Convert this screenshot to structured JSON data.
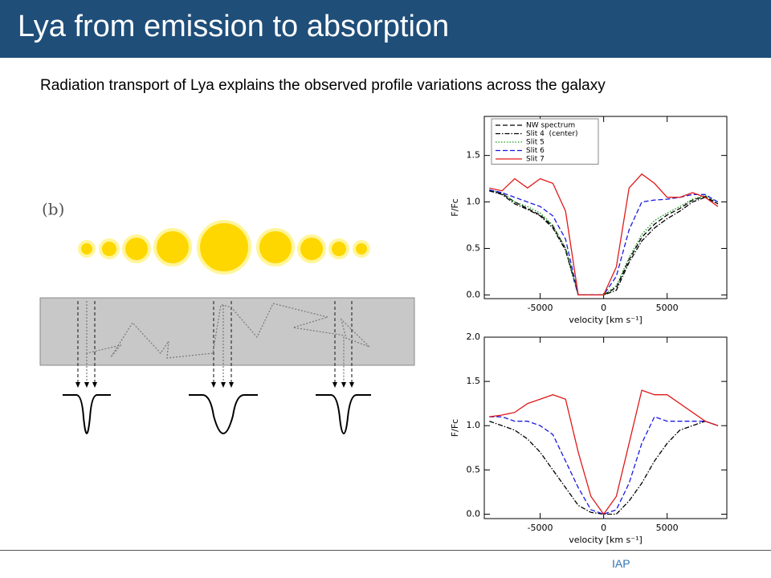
{
  "header": {
    "title": "Lya from emission to absorption"
  },
  "subtitle": "Radiation transport of Lya explains the observed profile variations across the galaxy",
  "diagram": {
    "label": "(b)"
  },
  "footer": "IAP",
  "chart_data": [
    {
      "type": "line",
      "x_label": "velocity [km s⁻¹]",
      "y_label": "F/Fc",
      "x": [
        -9000,
        -8000,
        -7000,
        -6000,
        -5000,
        -4000,
        -3000,
        -2000,
        -1000,
        0,
        1000,
        2000,
        3000,
        4000,
        5000,
        6000,
        7000,
        8000,
        9000
      ],
      "xlim": [
        -9400,
        9700
      ],
      "xticks": [
        -5000,
        0,
        5000
      ],
      "ylim": [
        -0.04,
        1.92
      ],
      "yticks": [
        {
          "value": 0,
          "label": "0.0"
        },
        {
          "value": 0.5,
          "label": "0.5"
        },
        {
          "value": 1,
          "label": "1.0"
        },
        {
          "value": 1.5,
          "label": "1.5"
        }
      ],
      "legend": "upper left",
      "series": [
        {
          "name": "NW spectrum",
          "color": "#000000",
          "linestyle": "dashed",
          "values": [
            1.12,
            1.09,
            1.0,
            0.93,
            0.86,
            0.74,
            0.5,
            0,
            0,
            0,
            0.08,
            0.38,
            0.62,
            0.76,
            0.86,
            0.93,
            1.02,
            1.06,
            0.98
          ]
        },
        {
          "name": "Slit 4  (center)",
          "color": "#000000",
          "linestyle": "dashdot",
          "values": [
            1.12,
            1.08,
            0.98,
            0.92,
            0.85,
            0.72,
            0.48,
            0,
            0,
            0,
            0.05,
            0.35,
            0.58,
            0.72,
            0.82,
            0.9,
            1.0,
            1.05,
            0.98
          ]
        },
        {
          "name": "Slit 5",
          "color": "#1a9a1a",
          "linestyle": "dotted",
          "values": [
            1.13,
            1.1,
            1.0,
            0.95,
            0.88,
            0.75,
            0.5,
            0,
            0,
            0,
            0.1,
            0.4,
            0.65,
            0.8,
            0.88,
            0.95,
            1.03,
            1.07,
            1.0
          ]
        },
        {
          "name": "Slit 6",
          "color": "#1a1ae0",
          "linestyle": "dashed",
          "values": [
            1.13,
            1.1,
            1.05,
            1.0,
            0.95,
            0.85,
            0.6,
            0,
            0,
            0,
            0.2,
            0.7,
            1.0,
            1.02,
            1.03,
            1.05,
            1.08,
            1.08,
            1.0
          ]
        },
        {
          "name": "Slit 7",
          "color": "#e01a1a",
          "linestyle": "solid",
          "values": [
            1.15,
            1.12,
            1.25,
            1.15,
            1.25,
            1.2,
            0.9,
            0,
            0,
            0,
            0.3,
            1.15,
            1.3,
            1.2,
            1.05,
            1.05,
            1.1,
            1.05,
            0.95
          ]
        }
      ]
    },
    {
      "type": "line",
      "x_label": "velocity [km s⁻¹]",
      "y_label": "F/Fc",
      "x": [
        -9000,
        -8000,
        -7000,
        -6000,
        -5000,
        -4000,
        -3000,
        -2000,
        -1000,
        0,
        1000,
        2000,
        3000,
        4000,
        5000,
        6000,
        7000,
        8000,
        9000
      ],
      "xlim": [
        -9400,
        9700
      ],
      "xticks": [
        -5000,
        0,
        5000
      ],
      "ylim": [
        -0.05,
        2.0
      ],
      "yticks": [
        {
          "value": 0,
          "label": "0.0"
        },
        {
          "value": 0.5,
          "label": "0.5"
        },
        {
          "value": 1,
          "label": "1.0"
        },
        {
          "value": 1.5,
          "label": "1.5"
        },
        {
          "value": 2,
          "label": "2.0"
        }
      ],
      "series": [
        {
          "color": "#000000",
          "linestyle": "dashdot",
          "values": [
            1.05,
            1.0,
            0.95,
            0.85,
            0.7,
            0.5,
            0.3,
            0.1,
            0.02,
            0,
            0,
            0.15,
            0.35,
            0.6,
            0.8,
            0.95,
            1.0,
            1.05,
            1.0
          ]
        },
        {
          "color": "#1a1ae0",
          "linestyle": "dashed",
          "values": [
            1.1,
            1.1,
            1.05,
            1.05,
            1.0,
            0.9,
            0.6,
            0.3,
            0.05,
            0,
            0.05,
            0.35,
            0.8,
            1.1,
            1.05,
            1.05,
            1.05,
            1.05,
            1.0
          ]
        },
        {
          "color": "#e01a1a",
          "linestyle": "solid",
          "values": [
            1.1,
            1.12,
            1.15,
            1.25,
            1.3,
            1.35,
            1.3,
            0.7,
            0.2,
            0,
            0.2,
            0.8,
            1.4,
            1.35,
            1.35,
            1.25,
            1.15,
            1.05,
            1.0
          ]
        }
      ]
    }
  ]
}
